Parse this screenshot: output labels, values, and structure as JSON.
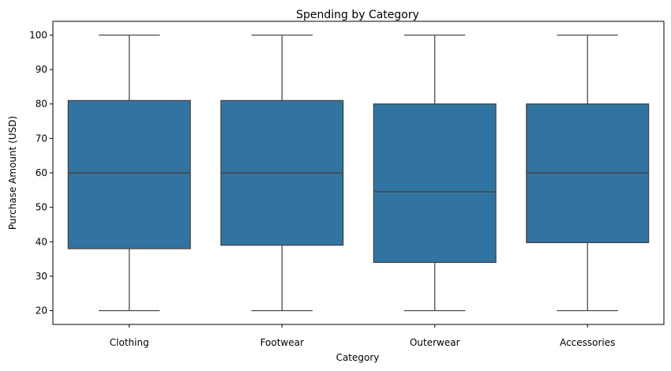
{
  "chart_data": {
    "type": "box",
    "title": "Spending by Category",
    "xlabel": "Category",
    "ylabel": "Purchase Amount (USD)",
    "ylim": [
      16,
      104
    ],
    "yticks": [
      20,
      30,
      40,
      50,
      60,
      70,
      80,
      90,
      100
    ],
    "categories": [
      "Clothing",
      "Footwear",
      "Outerwear",
      "Accessories"
    ],
    "boxes": [
      {
        "category": "Clothing",
        "min": 20,
        "q1": 38,
        "median": 60,
        "q3": 81,
        "max": 100
      },
      {
        "category": "Footwear",
        "min": 20,
        "q1": 39,
        "median": 60,
        "q3": 81,
        "max": 100
      },
      {
        "category": "Outerwear",
        "min": 20,
        "q1": 34,
        "median": 54.5,
        "q3": 80,
        "max": 100
      },
      {
        "category": "Accessories",
        "min": 20,
        "q1": 39.75,
        "median": 60,
        "q3": 80,
        "max": 100
      }
    ],
    "box_color": "#3274a1",
    "line_color": "#3f3f3f",
    "grid": false,
    "legend": "none"
  }
}
